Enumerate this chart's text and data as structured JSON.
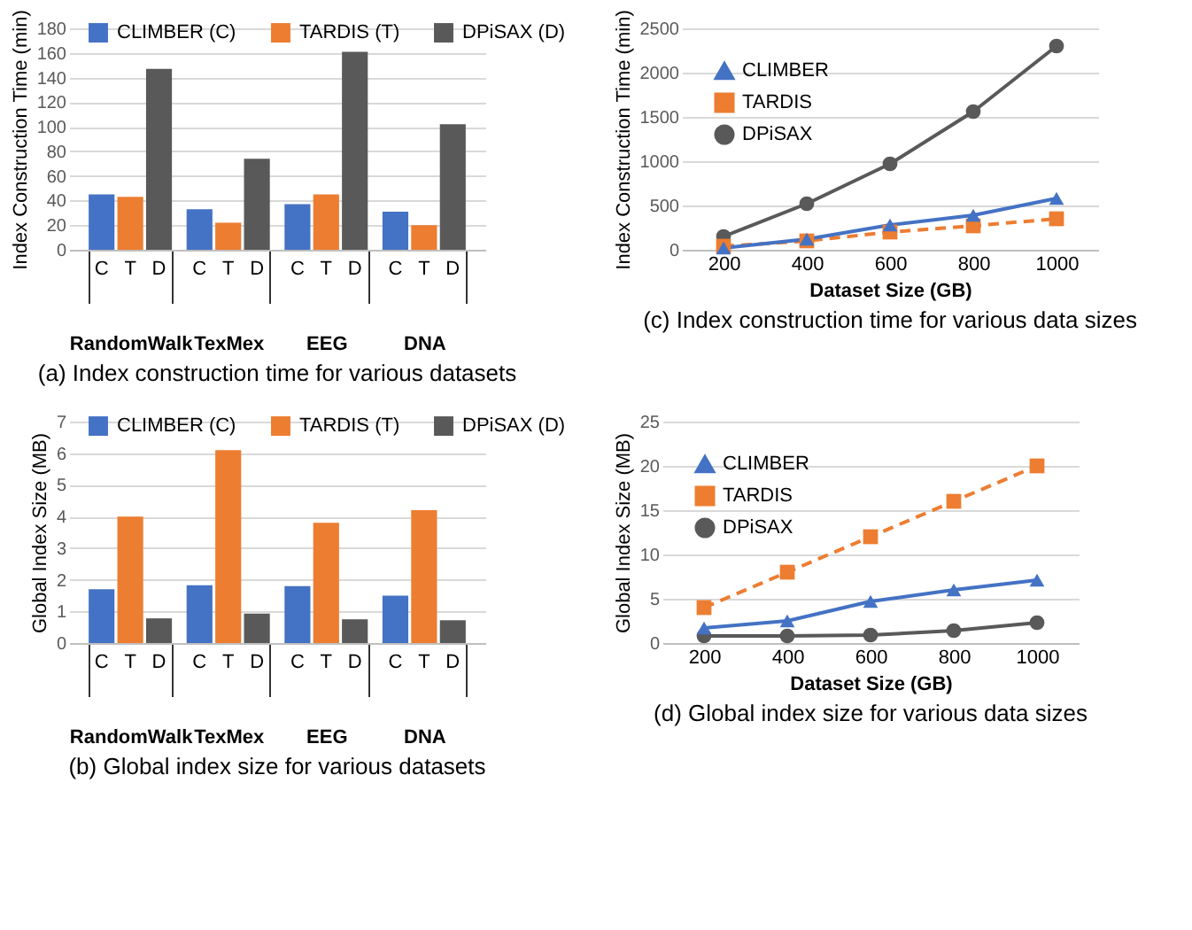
{
  "chart_data": [
    {
      "type": "bar",
      "title": "(a) Index construction time for various datasets",
      "ylabel": "Index Construction Time (min)",
      "categories": [
        "RandomWalk",
        "TexMex",
        "EEG",
        "DNA"
      ],
      "series": [
        {
          "name": "CLIMBER (C)",
          "color": "#4472c4",
          "values": [
            45,
            33,
            37,
            31
          ]
        },
        {
          "name": "TARDIS (T)",
          "color": "#ed7d31",
          "values": [
            43,
            22,
            45,
            20
          ]
        },
        {
          "name": "DPiSAX (D)",
          "color": "#595959",
          "values": [
            147,
            74,
            161,
            102
          ]
        }
      ],
      "annotations": [
        "C",
        "T",
        "D",
        "C",
        "T",
        "D",
        "C",
        "T",
        "D",
        "C",
        "T",
        "D"
      ],
      "ylim": [
        0,
        180
      ],
      "yticks": [
        0,
        20,
        40,
        60,
        80,
        100,
        120,
        140,
        160,
        180
      ],
      "grid": "y",
      "legend": "top"
    },
    {
      "type": "line",
      "title": "(c) Index construction time for various data sizes",
      "xlabel": "Dataset Size (GB)",
      "ylabel": "Index Construction Time (min)",
      "categories": [
        "200",
        "400",
        "600",
        "800",
        "1000"
      ],
      "series": [
        {
          "name": "CLIMBER",
          "color": "#4472c4",
          "marker": "triangle",
          "line_style": "solid",
          "values": [
            20,
            120,
            280,
            390,
            580
          ]
        },
        {
          "name": "TARDIS",
          "color": "#ed7d31",
          "marker": "square",
          "line_style": "dashed",
          "values": [
            40,
            100,
            200,
            270,
            350
          ]
        },
        {
          "name": "DPiSAX",
          "color": "#595959",
          "marker": "circle",
          "line_style": "solid",
          "values": [
            150,
            520,
            970,
            1560,
            2300
          ]
        }
      ],
      "ylim": [
        0,
        2500
      ],
      "yticks": [
        0,
        500,
        1000,
        1500,
        2000,
        2500
      ],
      "grid": "y",
      "legend": "top left"
    },
    {
      "type": "bar",
      "title": "(b) Global index size for various datasets",
      "ylabel": "Global Index Size (MB)",
      "categories": [
        "RandomWalk",
        "TexMex",
        "EEG",
        "DNA"
      ],
      "series": [
        {
          "name": "CLIMBER (C)",
          "color": "#4472c4",
          "values": [
            1.7,
            1.83,
            1.8,
            1.5
          ]
        },
        {
          "name": "TARDIS (T)",
          "color": "#ed7d31",
          "values": [
            4.0,
            6.1,
            3.8,
            4.2
          ]
        },
        {
          "name": "DPiSAX (D)",
          "color": "#595959",
          "values": [
            0.78,
            0.93,
            0.75,
            0.72
          ]
        }
      ],
      "annotations": [
        "C",
        "T",
        "D",
        "C",
        "T",
        "D",
        "C",
        "T",
        "D",
        "C",
        "T",
        "D"
      ],
      "ylim": [
        0,
        7
      ],
      "yticks": [
        0,
        1,
        2,
        3,
        4,
        5,
        6,
        7
      ],
      "grid": "y",
      "legend": "top"
    },
    {
      "type": "line",
      "title": "(d) Global index size for various data sizes",
      "xlabel": "Dataset Size (GB)",
      "ylabel": "Global Index Size (MB)",
      "categories": [
        "200",
        "400",
        "600",
        "800",
        "1000"
      ],
      "series": [
        {
          "name": "CLIMBER",
          "color": "#4472c4",
          "marker": "triangle",
          "line_style": "solid",
          "values": [
            1.7,
            2.5,
            4.7,
            6.0,
            7.1
          ]
        },
        {
          "name": "TARDIS",
          "color": "#ed7d31",
          "marker": "square",
          "line_style": "dashed",
          "values": [
            4,
            8,
            12,
            16,
            20
          ]
        },
        {
          "name": "DPiSAX",
          "color": "#595959",
          "marker": "circle",
          "line_style": "solid",
          "values": [
            0.8,
            0.8,
            0.9,
            1.4,
            2.3
          ]
        }
      ],
      "ylim": [
        0,
        25
      ],
      "yticks": [
        0,
        5,
        10,
        15,
        20,
        25
      ],
      "grid": "y",
      "legend": "top left"
    }
  ]
}
